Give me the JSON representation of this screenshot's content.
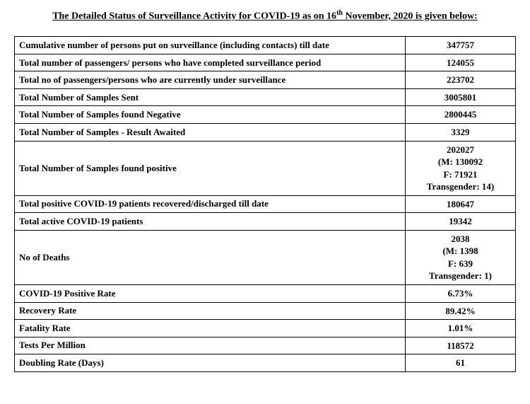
{
  "title_prefix": "The Detailed Status of Surveillance Activity for COVID-19 as on 16",
  "title_sup": "th",
  "title_suffix": " November, 2020 is given below:",
  "rows": [
    {
      "label": "Cumulative number of persons put on surveillance (including contacts) till date",
      "value": "347757"
    },
    {
      "label": "Total number of passengers/ persons who have completed surveillance period",
      "value": "124055"
    },
    {
      "label": "Total no of passengers/persons who are currently under surveillance",
      "value": "223702"
    },
    {
      "label": "Total Number of Samples Sent",
      "value": "3005801"
    },
    {
      "label": "Total Number of Samples found Negative",
      "value": "2800445"
    },
    {
      "label": "Total Number of Samples - Result Awaited",
      "value": "3329"
    },
    {
      "label": "Total Number of Samples found positive",
      "value": "202027\n(M: 130092\nF: 71921\nTransgender: 14)"
    },
    {
      "label": "Total positive COVID-19 patients recovered/discharged till date",
      "value": "180647"
    },
    {
      "label": "Total active COVID-19 patients",
      "value": "19342"
    },
    {
      "label": "No of Deaths",
      "value": "2038\n(M: 1398\nF: 639\nTransgender: 1)"
    },
    {
      "label": "COVID-19 Positive Rate",
      "value": "6.73%"
    },
    {
      "label": "Recovery Rate",
      "value": "89.42%"
    },
    {
      "label": "Fatality Rate",
      "value": "1.01%"
    },
    {
      "label": "Tests Per Million",
      "value": "118572"
    },
    {
      "label": "Doubling Rate (Days)",
      "value": "61"
    }
  ]
}
